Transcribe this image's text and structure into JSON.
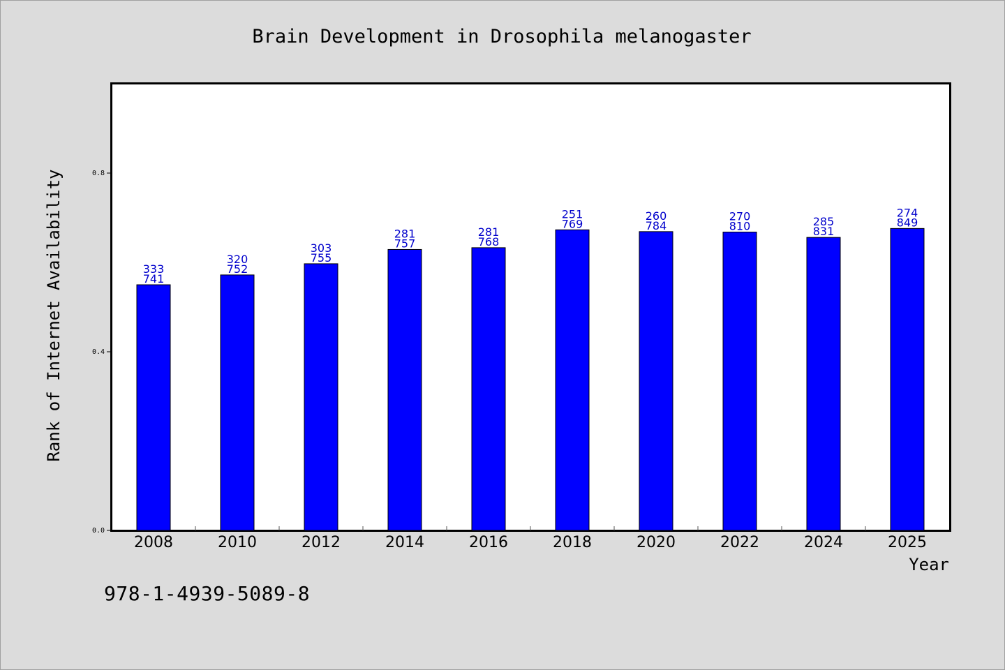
{
  "chart_data": {
    "type": "bar",
    "title": "Brain Development in Drosophila melanogaster",
    "xlabel": "Year",
    "ylabel": "Rank of Internet Availability",
    "ylim": [
      0,
      1.0
    ],
    "yticks": [
      "0.0",
      "0.4",
      "0.8"
    ],
    "categories": [
      "2008",
      "2010",
      "2012",
      "2014",
      "2016",
      "2018",
      "2020",
      "2022",
      "2024",
      "2025"
    ],
    "values": [
      0.55,
      0.572,
      0.597,
      0.629,
      0.633,
      0.673,
      0.669,
      0.668,
      0.656,
      0.676
    ],
    "labels_top": [
      "333",
      "320",
      "303",
      "281",
      "281",
      "251",
      "260",
      "270",
      "285",
      "274"
    ],
    "labels_bottom": [
      "741",
      "752",
      "755",
      "757",
      "768",
      "769",
      "784",
      "810",
      "831",
      "849"
    ],
    "bar_color": "#0000ff",
    "label_color": "#0000cc",
    "grid": false
  },
  "footer": {
    "isbn": "978-1-4939-5089-8"
  }
}
